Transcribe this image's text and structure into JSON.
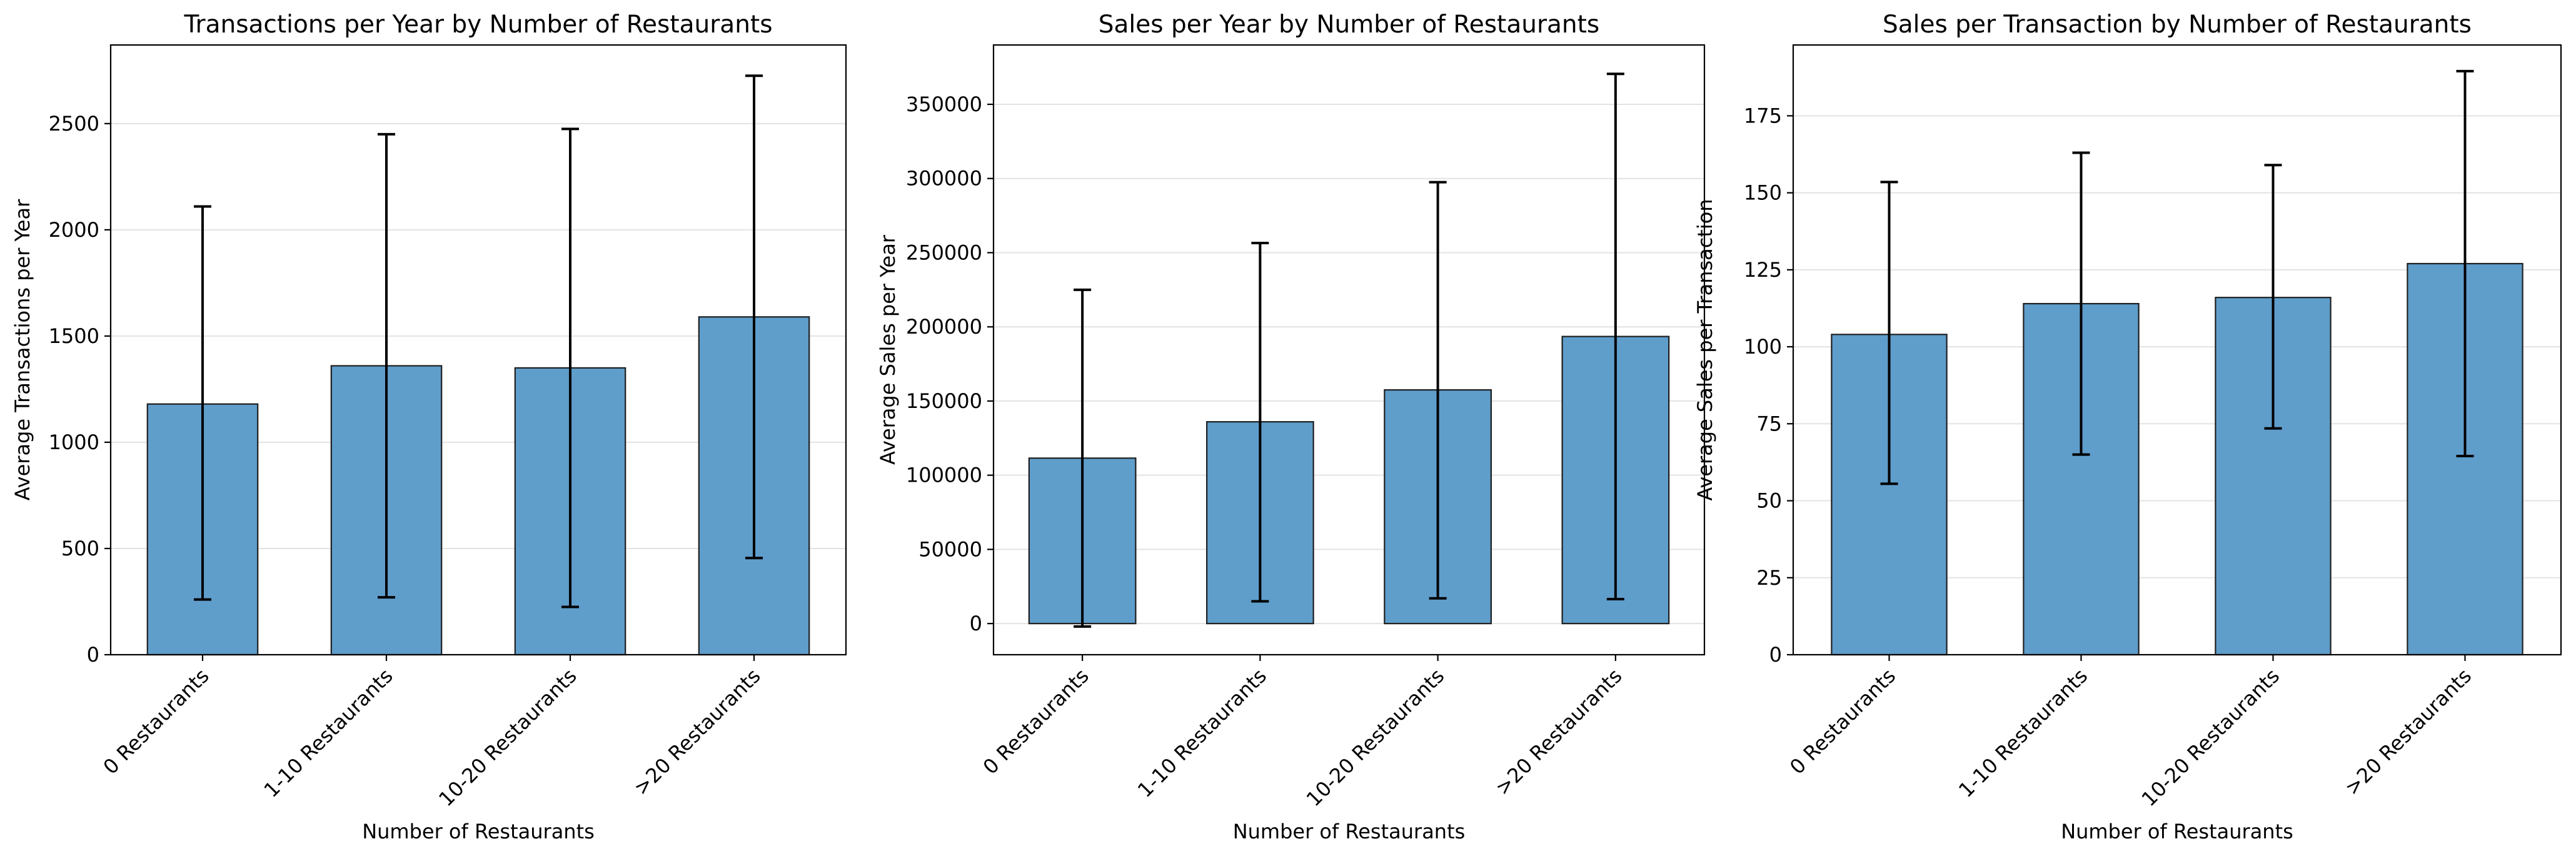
{
  "chart_data": [
    {
      "type": "bar",
      "title": "Transactions per Year by Number of Restaurants",
      "xlabel": "Number of Restaurants",
      "ylabel": "Average Transactions per Year",
      "categories": [
        "0 Restaurants",
        "1-10 Restaurants",
        "10-20 Restaurants",
        ">20 Restaurants"
      ],
      "values": [
        1180,
        1360,
        1350,
        1590
      ],
      "error_low": [
        260,
        270,
        225,
        455
      ],
      "error_high": [
        2110,
        2450,
        2475,
        2725
      ],
      "ylim": [
        0,
        2870
      ],
      "yticks": [
        0,
        500,
        1000,
        1500,
        2000,
        2500
      ],
      "ytick_labels": [
        "0",
        "500",
        "1000",
        "1500",
        "2000",
        "2500"
      ],
      "grid": true,
      "bar_color": "#5f9dcb"
    },
    {
      "type": "bar",
      "title": "Sales per Year by Number of Restaurants",
      "xlabel": "Number of Restaurants",
      "ylabel": "Average Sales per Year",
      "categories": [
        "0 Restaurants",
        "1-10 Restaurants",
        "10-20 Restaurants",
        ">20 Restaurants"
      ],
      "values": [
        111500,
        136000,
        157500,
        193500
      ],
      "error_low": [
        -2000,
        15000,
        17000,
        16500
      ],
      "error_high": [
        225000,
        256500,
        297500,
        370500
      ],
      "ylim": [
        -21000,
        390000
      ],
      "yticks": [
        0,
        50000,
        100000,
        150000,
        200000,
        250000,
        300000,
        350000
      ],
      "ytick_labels": [
        "0",
        "50000",
        "100000",
        "150000",
        "200000",
        "250000",
        "300000",
        "350000"
      ],
      "grid": true,
      "bar_color": "#5f9dcb"
    },
    {
      "type": "bar",
      "title": "Sales per Transaction by Number of Restaurants",
      "xlabel": "Number of Restaurants",
      "ylabel": "Average Sales per Transaction",
      "categories": [
        "0 Restaurants",
        "1-10 Restaurants",
        "10-20 Restaurants",
        ">20 Restaurants"
      ],
      "values": [
        104,
        114,
        116,
        127
      ],
      "error_low": [
        55.5,
        65,
        73.5,
        64.5
      ],
      "error_high": [
        153.5,
        163,
        159,
        189.5
      ],
      "ylim": [
        0,
        198
      ],
      "yticks": [
        0,
        25,
        50,
        75,
        100,
        125,
        150,
        175
      ],
      "ytick_labels": [
        "0",
        "25",
        "50",
        "75",
        "100",
        "125",
        "150",
        "175"
      ],
      "grid": true,
      "bar_color": "#5f9dcb"
    }
  ]
}
